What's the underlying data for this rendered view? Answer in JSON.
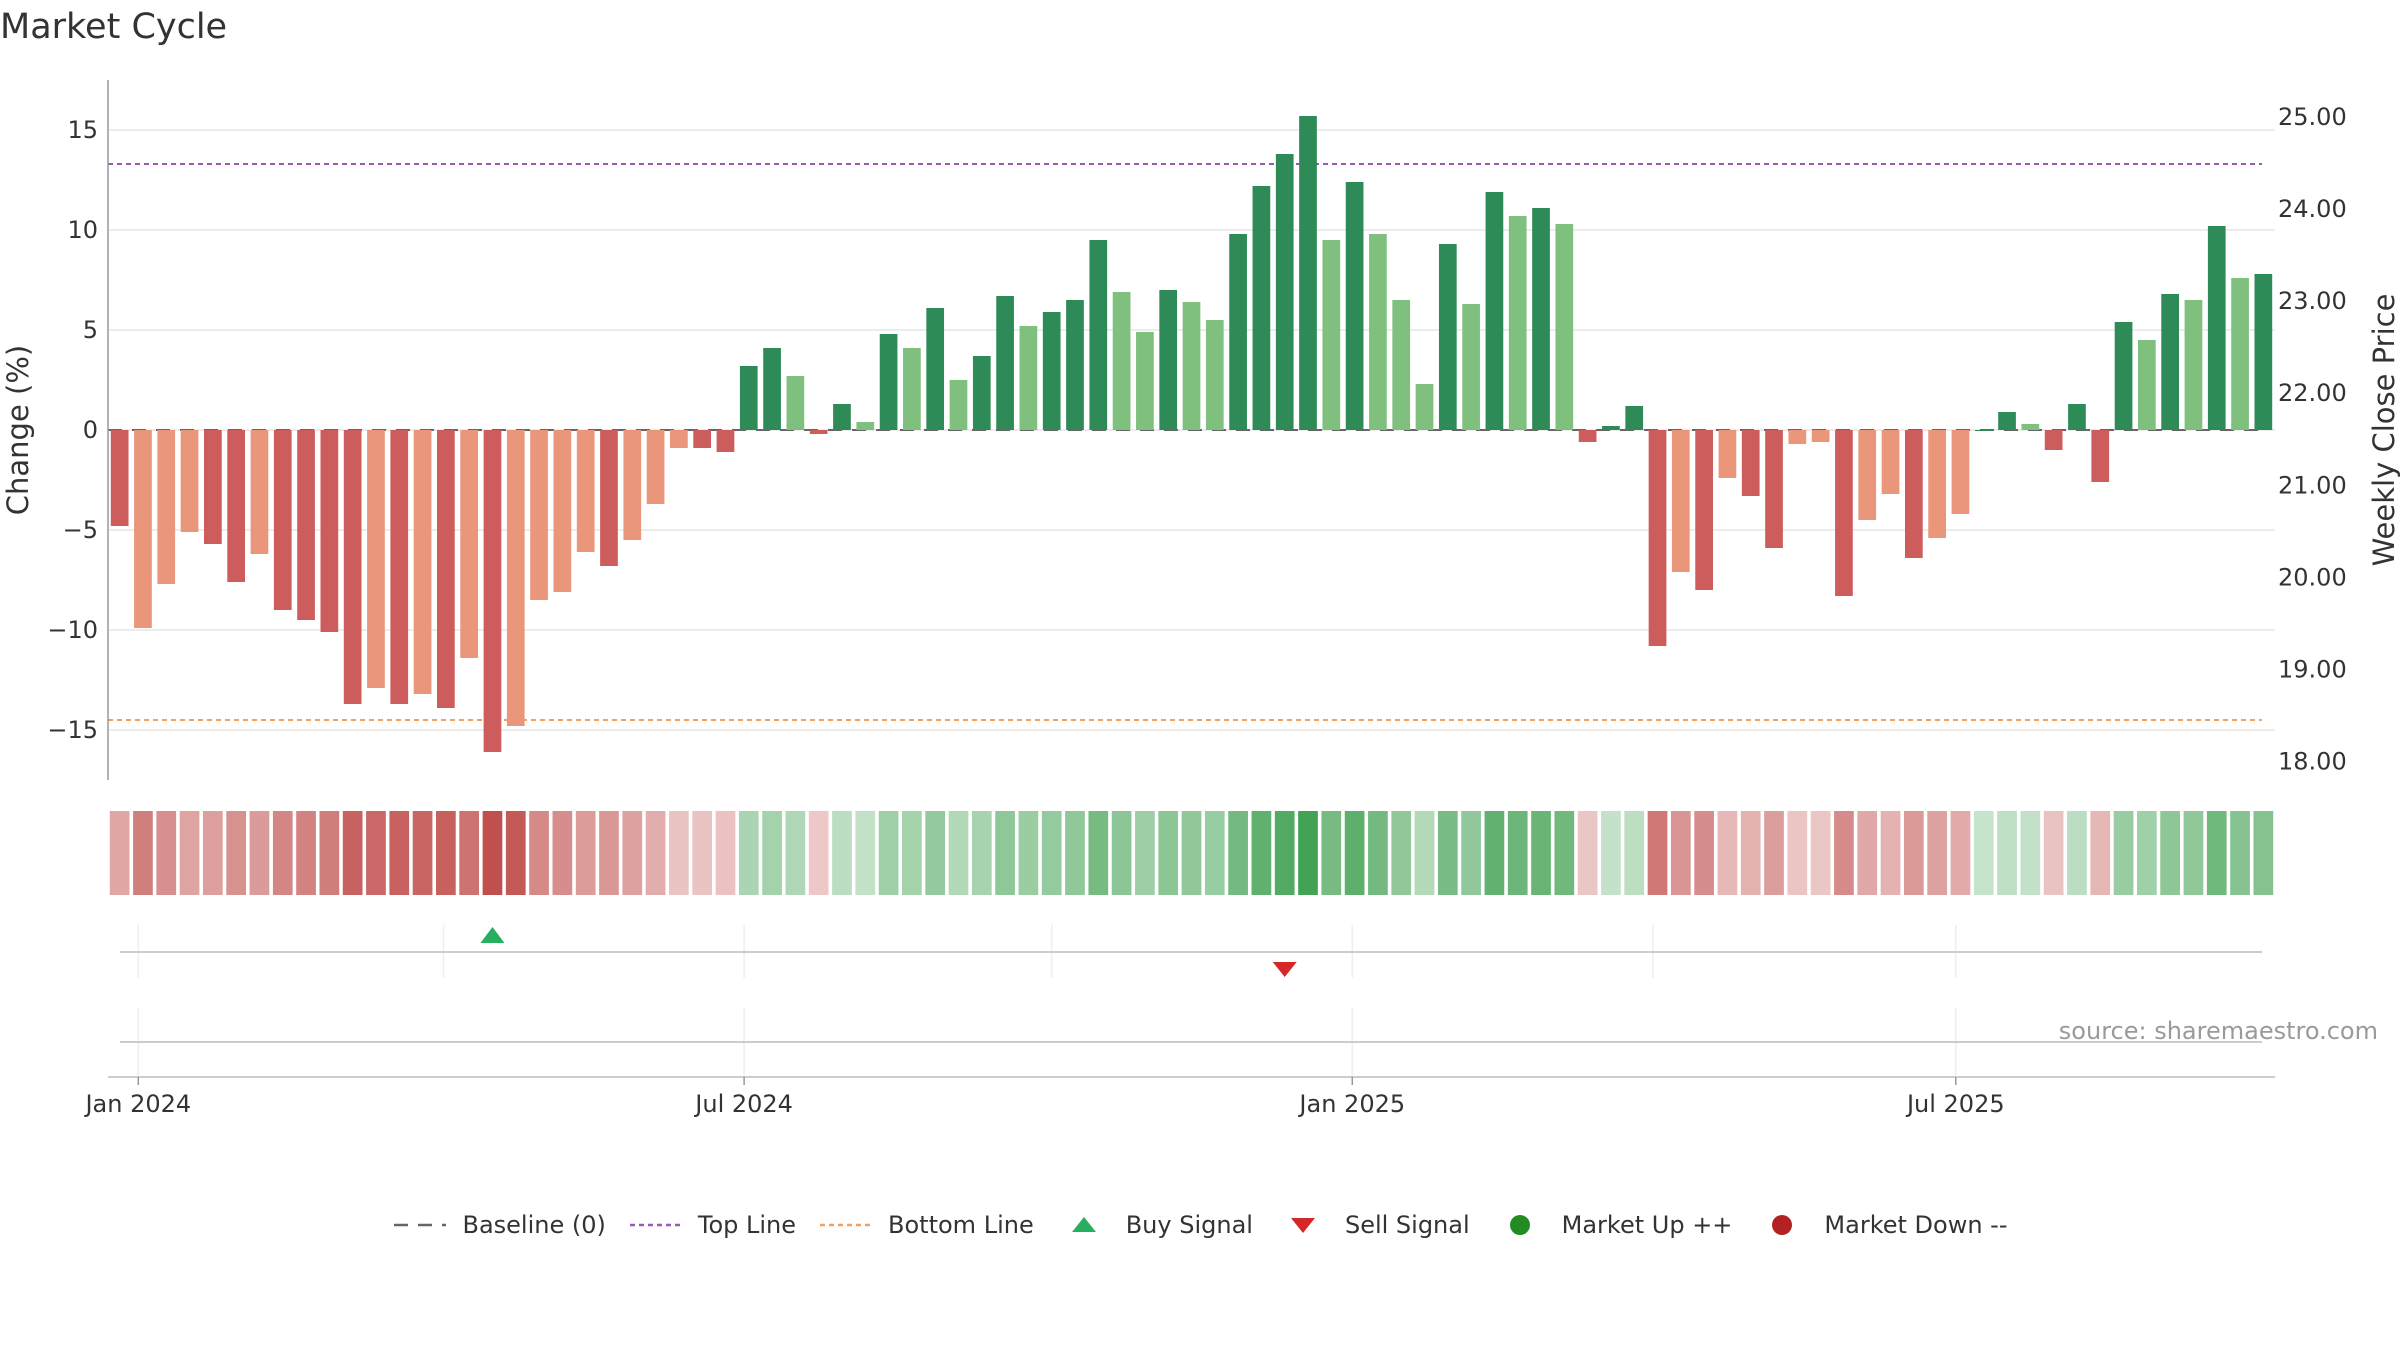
{
  "chart_data": {
    "type": "bar",
    "title": "Market Cycle",
    "ylabel": "Change (%)",
    "y2label": "Weekly Close Price",
    "ylim": [
      -17.5,
      17.5
    ],
    "y2lim": [
      17.8,
      25.4
    ],
    "yticks": [
      15,
      10,
      5,
      0,
      -5,
      -10,
      -15
    ],
    "y2ticks": [
      "25.00",
      "24.00",
      "23.00",
      "22.00",
      "21.00",
      "20.00",
      "19.00",
      "18.00"
    ],
    "xticks": [
      "Jan 2024",
      "Jul 2024",
      "Jan 2025",
      "Jul 2025"
    ],
    "top_line": 13.3,
    "bottom_line": -14.5,
    "baseline": 0,
    "grid": true,
    "legend_position": "bottom-center",
    "source": "source: sharemaestro.com",
    "values": [
      -4.8,
      -9.9,
      -7.7,
      -5.1,
      -5.7,
      -7.6,
      -6.2,
      -9.0,
      -9.5,
      -10.1,
      -13.7,
      -12.9,
      -13.7,
      -13.2,
      -13.9,
      -11.4,
      -16.1,
      -14.8,
      -8.5,
      -8.1,
      -6.1,
      -6.8,
      -5.5,
      -3.7,
      -0.9,
      -0.9,
      -1.1,
      3.2,
      4.1,
      2.7,
      -0.2,
      1.3,
      0.4,
      4.8,
      4.1,
      6.1,
      2.5,
      3.7,
      6.7,
      5.2,
      5.9,
      6.5,
      9.5,
      6.9,
      4.9,
      7.0,
      6.4,
      5.5,
      9.8,
      12.2,
      13.8,
      15.7,
      9.5,
      12.4,
      9.8,
      6.5,
      2.3,
      9.3,
      6.3,
      11.9,
      10.7,
      11.1,
      10.3,
      -0.6,
      0.2,
      1.2,
      -10.8,
      -7.1,
      -8.0,
      -2.4,
      -3.3,
      -5.9,
      -0.7,
      -0.6,
      -8.3,
      -4.5,
      -3.2,
      -6.4,
      -5.4,
      -4.2,
      0.0,
      0.9,
      0.3,
      -1.0,
      1.3,
      -2.6,
      5.4,
      4.5,
      6.8,
      6.5,
      10.2,
      7.6,
      7.8
    ],
    "strong_weeks": [
      1,
      0,
      0,
      0,
      1,
      1,
      0,
      1,
      1,
      1,
      1,
      0,
      1,
      0,
      1,
      0,
      1,
      0,
      0,
      0,
      0,
      1,
      0,
      0,
      0,
      1,
      1,
      1,
      1,
      0,
      1,
      1,
      0,
      1,
      0,
      1,
      0,
      1,
      1,
      0,
      1,
      1,
      1,
      0,
      0,
      1,
      0,
      0,
      1,
      1,
      1,
      1,
      0,
      1,
      0,
      0,
      0,
      1,
      0,
      1,
      0,
      1,
      0,
      1,
      1,
      1,
      1,
      0,
      1,
      0,
      1,
      1,
      0,
      0,
      1,
      0,
      0,
      1,
      0,
      0,
      1,
      1,
      0,
      1,
      1,
      1,
      1,
      0,
      1,
      0,
      1,
      0,
      1
    ],
    "buy_signals": [
      16
    ],
    "sell_signals": [
      50
    ]
  },
  "colors": {
    "strong_up": "#2e8b57",
    "weak_up": "#7fc07f",
    "strong_down": "#cd5c5c",
    "weak_down": "#e9967a",
    "top_line": "#9b59b6",
    "bottom_line": "#f0a060",
    "baseline": "#666666",
    "buy": "#27ae60",
    "sell": "#d62728",
    "market_up": "#228b22",
    "market_down": "#b22222",
    "heat_up": "#40a050",
    "heat_down": "#c0504d",
    "grid": "#e5e5e5"
  },
  "legend": [
    {
      "label": "Baseline (0)",
      "icon": "dashed-line-icon",
      "color": "#666666"
    },
    {
      "label": "Top Line",
      "icon": "dotted-line-icon",
      "color": "#9b59b6"
    },
    {
      "label": "Bottom Line",
      "icon": "dotted-line-icon",
      "color": "#f0a060"
    },
    {
      "label": "Buy Signal",
      "icon": "triangle-up-icon",
      "color": "#27ae60"
    },
    {
      "label": "Sell Signal",
      "icon": "triangle-down-icon",
      "color": "#d62728"
    },
    {
      "label": "Market Up ++",
      "icon": "circle-icon",
      "color": "#228b22"
    },
    {
      "label": "Market Down --",
      "icon": "circle-icon",
      "color": "#b22222"
    }
  ]
}
